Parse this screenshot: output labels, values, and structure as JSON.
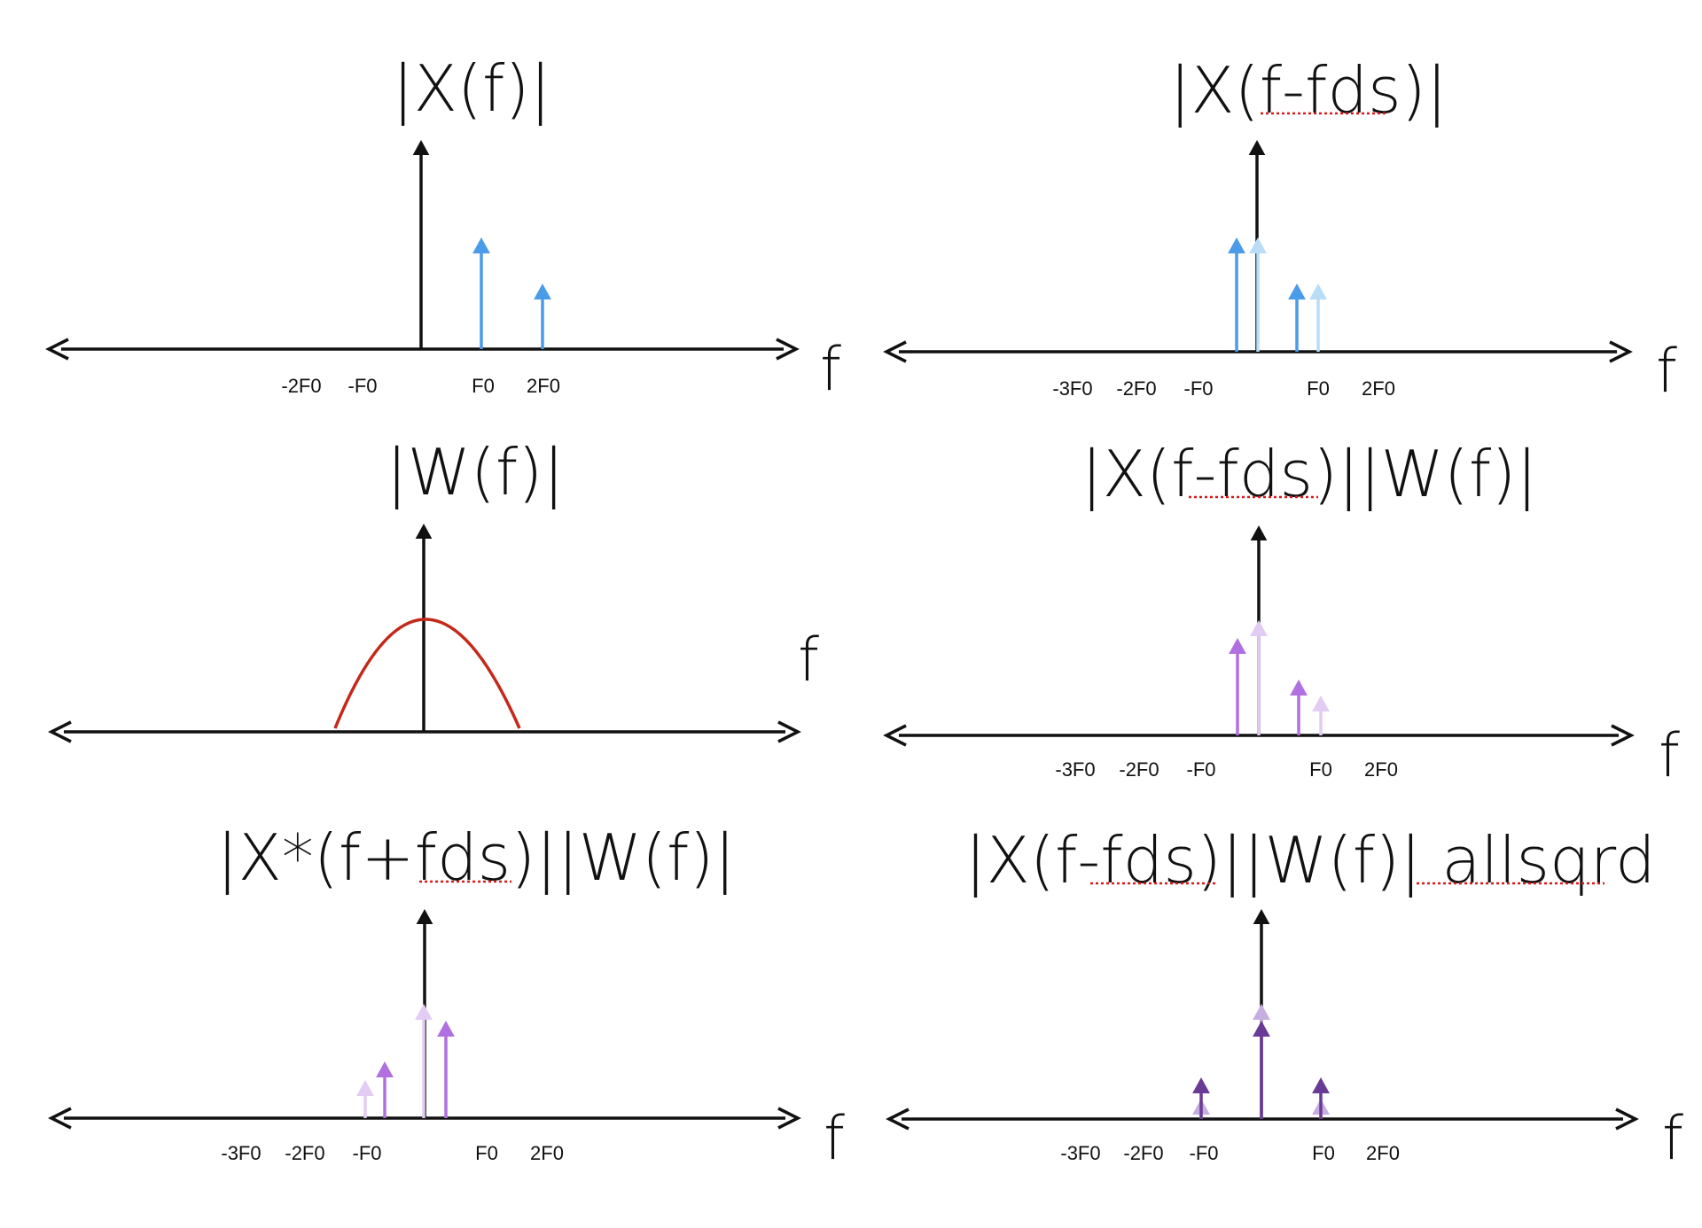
{
  "colors": {
    "axis": "#111111",
    "blue": "#4a9be8",
    "blue_light": "#b9dcf7",
    "purple": "#b070e0",
    "purple_light": "#e2ccf3",
    "purple_dark": "#6a3b96",
    "purple_dark_light": "#c7aee0",
    "curve": "#c4281a",
    "spellcheck": "#d81b1b"
  },
  "panels": [
    {
      "id": "x-f",
      "title": "|X(f)|",
      "axis_label": "f",
      "tick_labels": [
        "-2F0",
        "-F0",
        "F0",
        "2F0"
      ],
      "stems": [
        {
          "x": "F0",
          "height": 0.9,
          "tone": "blue"
        },
        {
          "x": "2F0",
          "height": 0.5,
          "tone": "blue"
        }
      ]
    },
    {
      "id": "x-f-fds",
      "title": "|X(f-fds)|",
      "title_flagged": "f-fds",
      "axis_label": "f",
      "tick_labels": [
        "-3F0",
        "-2F0",
        "-F0",
        "F0",
        "2F0"
      ],
      "stems": [
        {
          "x": "F0 - fds",
          "height": 0.9,
          "tone": "blue"
        },
        {
          "x": "F0",
          "height": 0.9,
          "tone": "blue_light"
        },
        {
          "x": "2F0 - fds",
          "height": 0.5,
          "tone": "blue"
        },
        {
          "x": "2F0",
          "height": 0.5,
          "tone": "blue_light"
        }
      ]
    },
    {
      "id": "w-f",
      "title": "|W(f)|",
      "axis_label": "f",
      "tick_labels": [],
      "curve": "window main lobe centred at 0"
    },
    {
      "id": "x-f-fds-w",
      "title": "|X(f-fds)||W(f)|",
      "title_flagged": "f-fds",
      "axis_label": "f",
      "tick_labels": [
        "-3F0",
        "-2F0",
        "-F0",
        "F0",
        "2F0"
      ],
      "stems": [
        {
          "x": "F0 - fds",
          "height": 0.75,
          "tone": "purple"
        },
        {
          "x": "F0",
          "height": 0.9,
          "tone": "purple_light"
        },
        {
          "x": "2F0 - fds",
          "height": 0.4,
          "tone": "purple"
        },
        {
          "x": "2F0",
          "height": 0.28,
          "tone": "purple_light"
        }
      ]
    },
    {
      "id": "xconj-f-fds-w",
      "title": "|X*(f+fds)||W(f)|",
      "title_flagged": "fds",
      "axis_label": "f",
      "tick_labels": [
        "-3F0",
        "-2F0",
        "-F0",
        "F0",
        "2F0"
      ],
      "stems": [
        {
          "x": "-2F0 + fds",
          "height": 0.28,
          "tone": "purple_light"
        },
        {
          "x": "-2F0",
          "height": 0.4,
          "tone": "purple"
        },
        {
          "x": "-F0 + fds",
          "height": 0.9,
          "tone": "purple_light"
        },
        {
          "x": "-F0",
          "height": 0.75,
          "tone": "purple"
        }
      ]
    },
    {
      "id": "x-f-fds-w-sq",
      "title": "|X(f-fds)||W(f)| allsqrd",
      "title_flagged": "fds, allsqrd",
      "axis_label": "f",
      "tick_labels": [
        "-3F0",
        "-2F0",
        "-F0",
        "F0",
        "2F0"
      ],
      "stems": [
        {
          "x": "0",
          "height": 0.9,
          "tone": "purple_dark_light"
        },
        {
          "x": "0",
          "height": 0.75,
          "tone": "purple_dark"
        },
        {
          "x": "-F0",
          "height": 0.28,
          "tone": "purple_dark_light"
        },
        {
          "x": "-F0",
          "height": 0.4,
          "tone": "purple_dark"
        },
        {
          "x": "F0",
          "height": 0.28,
          "tone": "purple_dark_light"
        },
        {
          "x": "F0",
          "height": 0.4,
          "tone": "purple_dark"
        }
      ]
    }
  ]
}
